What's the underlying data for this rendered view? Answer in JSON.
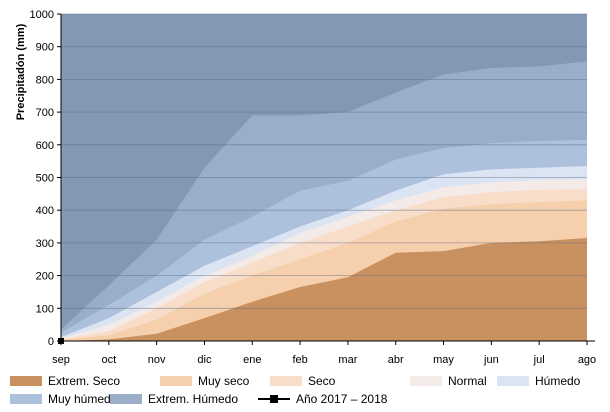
{
  "chart_data": {
    "type": "area",
    "ylabel": "Precipitadón (mm)",
    "ylim": [
      0,
      1000
    ],
    "yticks": [
      0,
      100,
      200,
      300,
      400,
      500,
      600,
      700,
      800,
      900,
      1000
    ],
    "grid": true,
    "categories": [
      "sep",
      "oct",
      "nov",
      "dic",
      "ene",
      "feb",
      "mar",
      "abr",
      "may",
      "jun",
      "jul",
      "ago"
    ],
    "series": [
      {
        "name": "Extrem. Seco",
        "color": "#c8915f",
        "values": [
          0,
          5,
          22,
          70,
          120,
          165,
          195,
          270,
          275,
          300,
          305,
          315
        ]
      },
      {
        "name": "Muy seco",
        "color": "#f6cfad",
        "values": [
          3,
          18,
          65,
          145,
          200,
          250,
          300,
          365,
          405,
          418,
          425,
          430
        ]
      },
      {
        "name": "Seco",
        "color": "#f8ddc9",
        "values": [
          5,
          30,
          100,
          180,
          240,
          300,
          350,
          400,
          440,
          455,
          462,
          465
        ]
      },
      {
        "name": "Normal",
        "color": "#f4ebe8",
        "values": [
          8,
          50,
          120,
          200,
          260,
          330,
          380,
          430,
          470,
          485,
          492,
          495
        ]
      },
      {
        "name": "Húmedo",
        "color": "#dbe4f3",
        "values": [
          12,
          70,
          150,
          230,
          290,
          350,
          400,
          460,
          510,
          525,
          530,
          535
        ]
      },
      {
        "name": "Muy húmedo",
        "color": "#adc0dc",
        "values": [
          25,
          110,
          200,
          310,
          380,
          460,
          490,
          555,
          590,
          605,
          612,
          615
        ]
      },
      {
        "name": "Extrem. Húmedo",
        "color": "#9aaeca",
        "values": [
          35,
          170,
          310,
          530,
          690,
          690,
          700,
          760,
          815,
          835,
          840,
          855
        ]
      }
    ],
    "line_series": {
      "name": "Año 2017 – 2018",
      "color": "#000000",
      "values": [
        0
      ]
    },
    "legend": "bottom"
  }
}
